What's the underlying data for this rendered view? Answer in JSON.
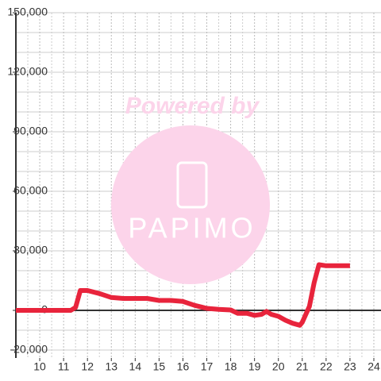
{
  "chart_data": {
    "type": "line",
    "x": [
      9,
      11.3,
      11.5,
      11.7,
      12,
      12.5,
      13,
      13.5,
      14.5,
      15,
      15.5,
      16,
      16.5,
      17,
      17.5,
      18,
      18.3,
      18.7,
      19,
      19.3,
      19.5,
      19.7,
      20,
      20.3,
      20.6,
      20.9,
      21,
      21.3,
      21.5,
      21.7,
      22,
      23
    ],
    "series": [
      {
        "color": "#e8243c",
        "values": [
          0,
          0,
          1500,
          10000,
          10000,
          8500,
          6500,
          6000,
          6000,
          5000,
          5000,
          4500,
          2500,
          1000,
          500,
          200,
          -1500,
          -1500,
          -2500,
          -2000,
          -500,
          -2000,
          -3000,
          -5000,
          -6500,
          -7500,
          -6000,
          2000,
          14000,
          23000,
          22500,
          22500
        ]
      }
    ],
    "xlim": [
      9,
      24.3
    ],
    "xticks": [
      10,
      11,
      12,
      13,
      14,
      15,
      16,
      17,
      18,
      19,
      20,
      21,
      22,
      23,
      24
    ],
    "minor_xticks": [
      9.5,
      10.5,
      11.5,
      12.5,
      13.5,
      14.5,
      15.5,
      16.5,
      17.5,
      18.5,
      19.5,
      20.5,
      21.5,
      22.5,
      23.5
    ],
    "ylim": [
      -24000,
      150000
    ],
    "yticks": [
      {
        "value": -20000,
        "label": "-20,000"
      },
      0,
      {
        "value": 30000,
        "label": "30,000"
      },
      {
        "value": 60000,
        "label": "60,000"
      },
      {
        "value": 90000,
        "label": "90,000"
      },
      {
        "value": 120000,
        "label": "120,000"
      },
      {
        "value": 150000,
        "label": "150,000"
      }
    ],
    "minor_yticks": [
      -10000,
      10000,
      20000,
      40000,
      50000,
      70000,
      80000,
      100000,
      110000,
      130000,
      140000
    ],
    "grid": true,
    "watermark": {
      "top": "Powered by",
      "bottom": "PAPIMO"
    }
  }
}
